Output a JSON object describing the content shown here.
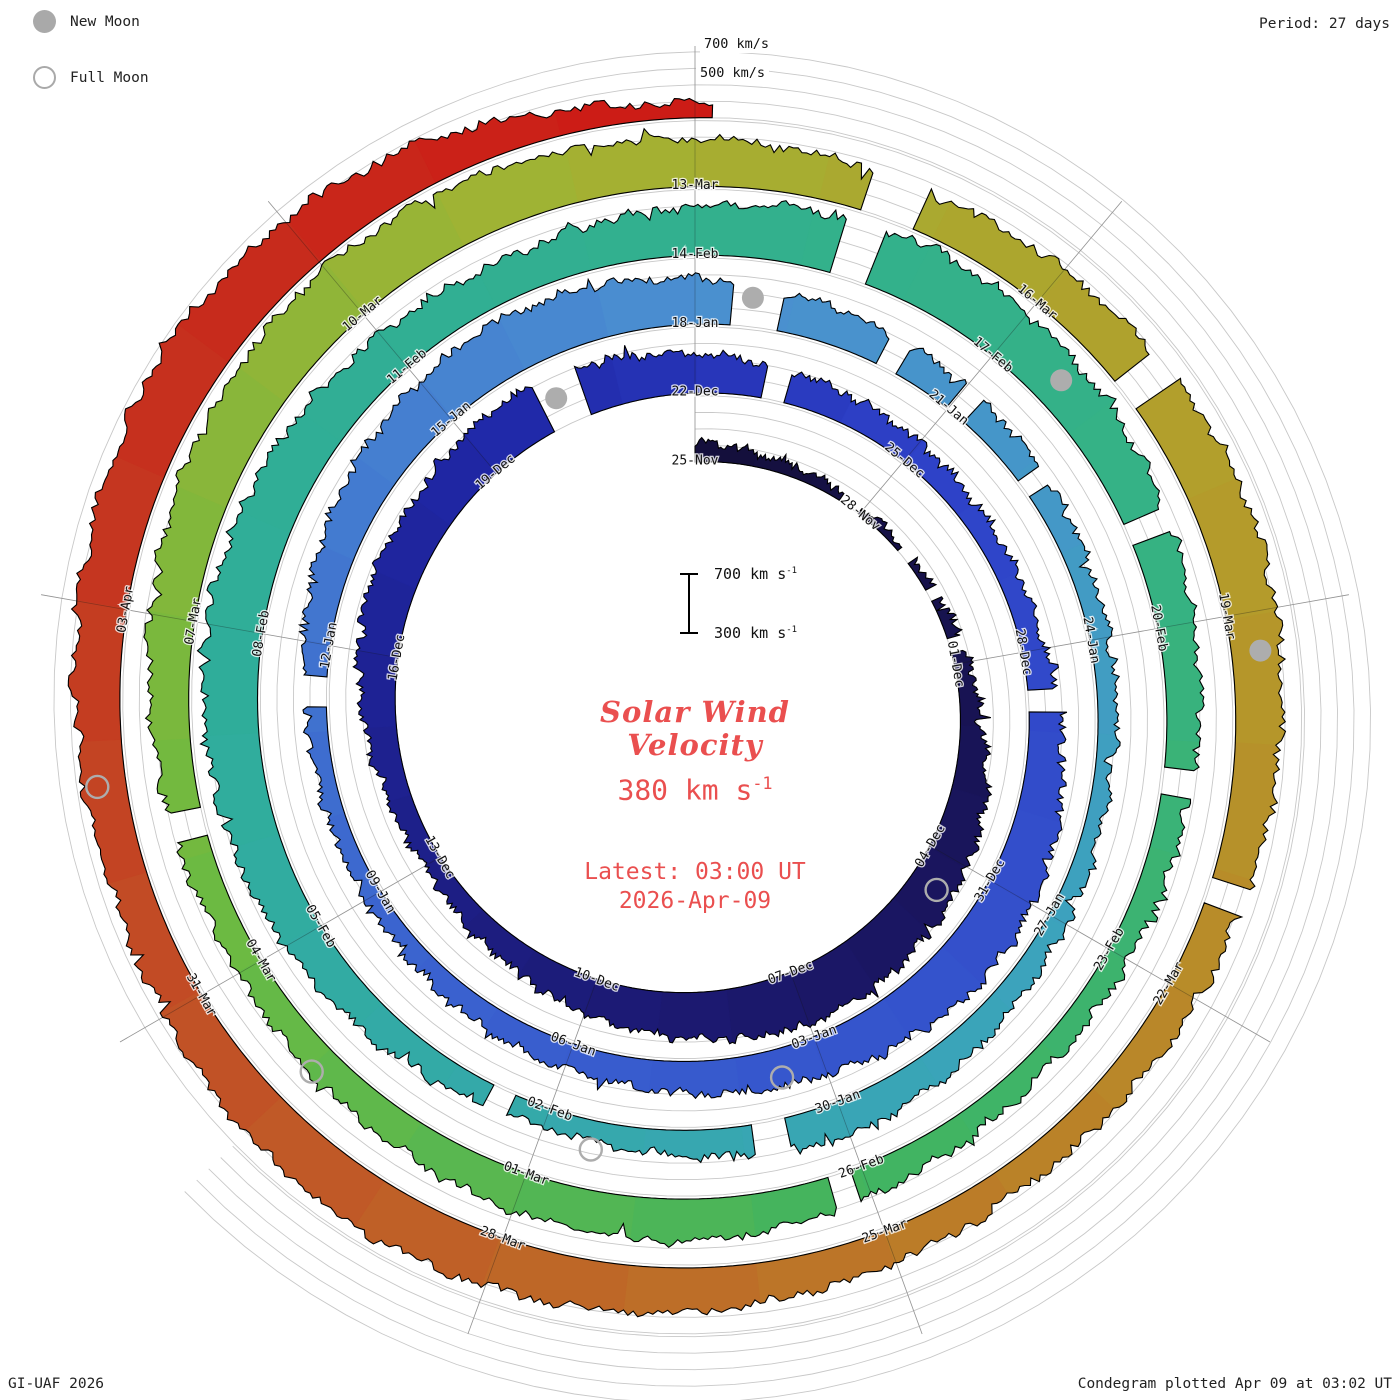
{
  "meta": {
    "credit": "GI-UAF 2026",
    "plotted": "Condegram plotted Apr 09 at 03:02 UT",
    "period_label": "Period: 27 days"
  },
  "legend": {
    "new_moon": "New Moon",
    "full_moon": "Full Moon"
  },
  "grid_labels": {
    "v700": "700 km/s",
    "v500": "500 km/s"
  },
  "center": {
    "title_line1": "Solar Wind",
    "title_line2": "Velocity",
    "value_main": "380 km s",
    "value_sup": "-1",
    "latest_line1": "Latest: 03:00 UT",
    "latest_line2": "2026-Apr-09",
    "scale_top_main": "700 km s",
    "scale_top_sup": "-1",
    "scale_bottom_main": "300 km s",
    "scale_bottom_sup": "-1",
    "accent_color": "#ea4f4f"
  },
  "chart_data": {
    "type": "spiral-polar-condegram",
    "title": "Solar Wind Velocity",
    "units": "km/s",
    "period_days": 27,
    "start_date": "2025-11-25",
    "end_date": "2026-04-09",
    "latest_value_kms": 380,
    "latest_time": "Latest: 03:00 UT 2026-Apr-09",
    "velocity_range": [
      300,
      700
    ],
    "grid_velocities": [
      300,
      400,
      500,
      600,
      700
    ],
    "direction": "clockwise-from-top",
    "date_labels": [
      {
        "label": "25-Nov",
        "day": 0
      },
      {
        "label": "28-Nov",
        "day": 3
      },
      {
        "label": "01-Dec",
        "day": 6
      },
      {
        "label": "04-Dec",
        "day": 9
      },
      {
        "label": "07-Dec",
        "day": 12
      },
      {
        "label": "10-Dec",
        "day": 15
      },
      {
        "label": "13-Dec",
        "day": 18
      },
      {
        "label": "16-Dec",
        "day": 21
      },
      {
        "label": "19-Dec",
        "day": 24
      },
      {
        "label": "22-Dec",
        "day": 27
      },
      {
        "label": "25-Dec",
        "day": 30
      },
      {
        "label": "28-Dec",
        "day": 33
      },
      {
        "label": "31-Dec",
        "day": 36
      },
      {
        "label": "03-Jan",
        "day": 39
      },
      {
        "label": "06-Jan",
        "day": 42
      },
      {
        "label": "09-Jan",
        "day": 45
      },
      {
        "label": "12-Jan",
        "day": 48
      },
      {
        "label": "15-Jan",
        "day": 51
      },
      {
        "label": "18-Jan",
        "day": 54
      },
      {
        "label": "21-Jan",
        "day": 57
      },
      {
        "label": "24-Jan",
        "day": 60
      },
      {
        "label": "27-Jan",
        "day": 63
      },
      {
        "label": "30-Jan",
        "day": 66
      },
      {
        "label": "02-Feb",
        "day": 69
      },
      {
        "label": "05-Feb",
        "day": 72
      },
      {
        "label": "08-Feb",
        "day": 75
      },
      {
        "label": "11-Feb",
        "day": 78
      },
      {
        "label": "14-Feb",
        "day": 81
      },
      {
        "label": "17-Feb",
        "day": 84
      },
      {
        "label": "20-Feb",
        "day": 87
      },
      {
        "label": "23-Feb",
        "day": 90
      },
      {
        "label": "26-Feb",
        "day": 93
      },
      {
        "label": "01-Mar",
        "day": 96
      },
      {
        "label": "04-Mar",
        "day": 99
      },
      {
        "label": "07-Mar",
        "day": 102
      },
      {
        "label": "10-Mar",
        "day": 105
      },
      {
        "label": "13-Mar",
        "day": 108
      },
      {
        "label": "16-Mar",
        "day": 111
      },
      {
        "label": "19-Mar",
        "day": 114
      },
      {
        "label": "22-Mar",
        "day": 117
      },
      {
        "label": "25-Mar",
        "day": 120
      },
      {
        "label": "28-Mar",
        "day": 123
      },
      {
        "label": "31-Mar",
        "day": 126
      },
      {
        "label": "03-Apr",
        "day": 129
      }
    ],
    "daily_velocity": [
      420,
      380,
      360,
      350,
      340,
      360,
      390,
      430,
      520,
      560,
      600,
      620,
      640,
      600,
      560,
      520,
      470,
      430,
      410,
      440,
      490,
      540,
      580,
      560,
      600,
      620,
      580,
      540,
      500,
      470,
      450,
      430,
      420,
      450,
      500,
      560,
      600,
      620,
      590,
      550,
      510,
      480,
      460,
      440,
      420,
      410,
      400,
      420,
      460,
      520,
      570,
      610,
      640,
      620,
      580,
      540,
      500,
      470,
      450,
      430,
      420,
      410,
      400,
      420,
      450,
      490,
      520,
      480,
      440,
      420,
      450,
      500,
      550,
      590,
      620,
      650,
      630,
      600,
      560,
      530,
      560,
      600,
      640,
      660,
      640,
      600,
      560,
      520,
      490,
      460,
      440,
      430,
      450,
      490,
      530,
      560,
      540,
      510,
      480,
      460,
      480,
      520,
      570,
      620,
      650,
      670,
      650,
      620,
      590,
      560,
      540,
      560,
      600,
      630,
      610,
      570,
      530,
      500,
      480,
      470,
      500,
      540,
      580,
      610,
      630,
      600,
      560,
      530,
      560,
      600,
      640,
      660,
      630,
      570,
      450,
      380
    ],
    "data_gaps_days": [
      [
        2.6,
        2.95
      ],
      [
        3.9,
        4.15
      ],
      [
        4.7,
        4.9
      ],
      [
        5.6,
        5.8
      ],
      [
        25.0,
        25.55
      ],
      [
        27.9,
        28.2
      ],
      [
        33.5,
        33.75
      ],
      [
        47.3,
        47.6
      ],
      [
        54.4,
        54.9
      ],
      [
        56.1,
        56.3
      ],
      [
        57.0,
        57.2
      ],
      [
        58.1,
        58.3
      ],
      [
        66.6,
        66.9
      ],
      [
        69.4,
        69.6
      ],
      [
        82.3,
        82.6
      ],
      [
        86.0,
        86.2
      ],
      [
        88.3,
        88.5
      ],
      [
        93.1,
        93.3
      ],
      [
        100.2,
        100.4
      ],
      [
        109.4,
        109.8
      ],
      [
        111.9,
        112.15
      ],
      [
        116.1,
        116.3
      ]
    ],
    "moon_events": [
      {
        "type": "full",
        "date": "04-Dec",
        "day": 9.5
      },
      {
        "type": "new",
        "date": "20-Dec",
        "day": 25.2
      },
      {
        "type": "full",
        "date": "03-Jan",
        "day": 39.5
      },
      {
        "type": "new",
        "date": "18-Jan",
        "day": 54.6
      },
      {
        "type": "full",
        "date": "01-Feb",
        "day": 68.5
      },
      {
        "type": "new",
        "date": "17-Feb",
        "day": 84.6
      },
      {
        "type": "full",
        "date": "03-Mar",
        "day": 98.0
      },
      {
        "type": "new",
        "date": "19-Mar",
        "day": 114.3
      },
      {
        "type": "full",
        "date": "01-Apr",
        "day": 127.7
      }
    ],
    "color_stops": [
      {
        "day": 0,
        "color": "#140f3a"
      },
      {
        "day": 12,
        "color": "#1b1768"
      },
      {
        "day": 24,
        "color": "#1f27a6"
      },
      {
        "day": 30,
        "color": "#2e41c8"
      },
      {
        "day": 44,
        "color": "#3a62cf"
      },
      {
        "day": 54,
        "color": "#4b8fd0"
      },
      {
        "day": 64,
        "color": "#3ba4bb"
      },
      {
        "day": 74,
        "color": "#2fad9b"
      },
      {
        "day": 86,
        "color": "#35b285"
      },
      {
        "day": 93,
        "color": "#42b45f"
      },
      {
        "day": 100,
        "color": "#6fba40"
      },
      {
        "day": 107,
        "color": "#a3b233"
      },
      {
        "day": 113,
        "color": "#b39d2b"
      },
      {
        "day": 119,
        "color": "#bb7f28"
      },
      {
        "day": 125,
        "color": "#c05527"
      },
      {
        "day": 130,
        "color": "#c5321f"
      },
      {
        "day": 135,
        "color": "#cd1a15"
      }
    ]
  }
}
